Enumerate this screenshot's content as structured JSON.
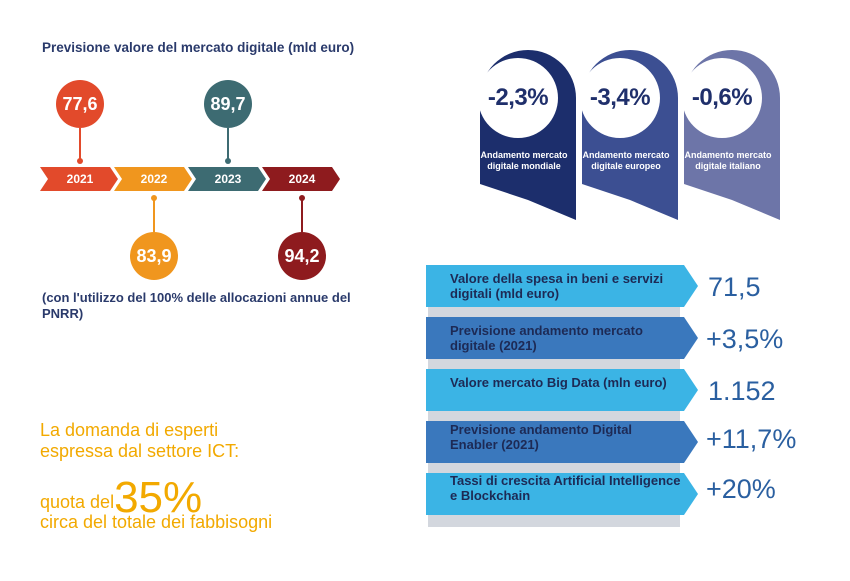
{
  "timeline": {
    "title": "Previsione valore del mercato digitale (mld euro)",
    "years": [
      "2021",
      "2022",
      "2023",
      "2024"
    ],
    "values": [
      "77,6",
      "83,9",
      "89,7",
      "94,2"
    ],
    "footnote": "(con l'utilizzo del 100% delle allocazioni annue del PNRR)",
    "colors": [
      "#e24a2b",
      "#f0961e",
      "#3d6b72",
      "#8e1b1e"
    ]
  },
  "ict": {
    "line1": "La domanda di esperti",
    "line2": "espressa dal settore ICT:",
    "line3_prefix": "quota del",
    "line3_value": "35%",
    "line4": "circa del totale dei fabbisogni"
  },
  "badges": [
    {
      "value": "-2,3%",
      "label": "Andamento mercato digitale mondiale",
      "color": "#1c2e6c"
    },
    {
      "value": "-3,4%",
      "label": "Andamento mercato digitale europeo",
      "color": "#3c4f92"
    },
    {
      "value": "-0,6%",
      "label": "Andamento mercato digitale italiano",
      "color": "#6d75a8"
    }
  ],
  "stats": [
    {
      "label": "Valore della spesa in beni e servizi digitali (mld euro)",
      "value": "71,5",
      "color": "#3bb4e5"
    },
    {
      "label": "Previsione andamento mercato digitale (2021)",
      "value": "+3,5%",
      "color": "#3a78bd"
    },
    {
      "label": "Valore mercato Big Data (mln euro)",
      "value": "1.152",
      "color": "#3bb4e5"
    },
    {
      "label": "Previsione andamento Digital Enabler (2021)",
      "value": "+11,7%",
      "color": "#3a78bd"
    },
    {
      "label": "Tassi di crescita Artificial Intelligence e Blockchain",
      "value": "+20%",
      "color": "#3bb4e5"
    }
  ]
}
